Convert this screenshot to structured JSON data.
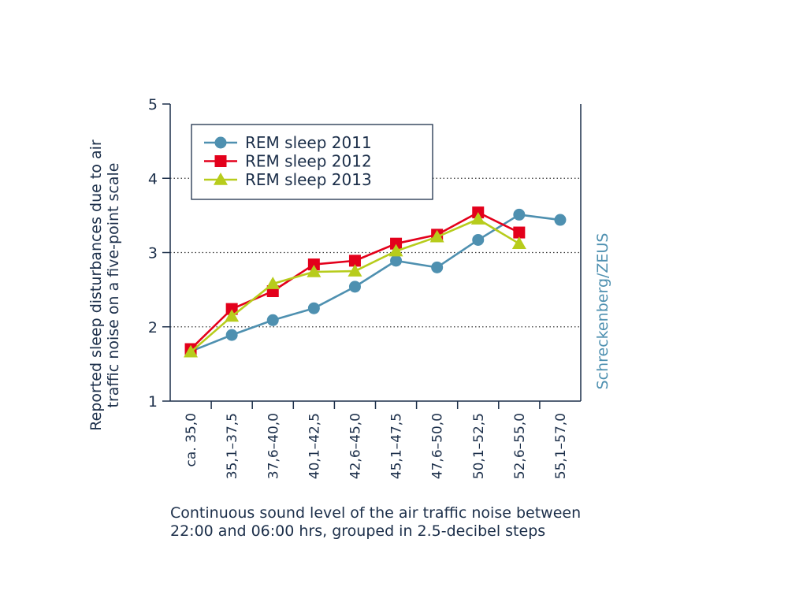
{
  "chart_data": {
    "type": "line",
    "categories": [
      "ca. 35,0",
      "35,1–37,5",
      "37,6–40,0",
      "40,1–42,5",
      "42,6–45,0",
      "45,1–47,5",
      "47,6–50,0",
      "50,1–52,5",
      "52,6–55,0",
      "55,1–57,0"
    ],
    "series": [
      {
        "name": "REM sleep 2011",
        "color": "#4e90b0",
        "marker": "circle",
        "values": [
          1.67,
          1.89,
          2.09,
          2.25,
          2.54,
          2.89,
          2.8,
          3.17,
          3.51,
          3.44
        ]
      },
      {
        "name": "REM sleep 2012",
        "color": "#e3001b",
        "marker": "square",
        "values": [
          1.7,
          2.24,
          2.48,
          2.84,
          2.89,
          3.12,
          3.24,
          3.54,
          3.27,
          null
        ]
      },
      {
        "name": "REM sleep 2013",
        "color": "#b7cc1c",
        "marker": "triangle",
        "values": [
          1.66,
          2.14,
          2.58,
          2.74,
          2.75,
          3.02,
          3.21,
          3.45,
          3.12,
          null
        ]
      }
    ],
    "ylim": [
      1,
      5
    ],
    "yticks": [
      "1",
      "2",
      "3",
      "4",
      "5"
    ],
    "dotted_gridlines_at": [
      2,
      3,
      4
    ],
    "ylabel_lines": [
      "Reported sleep disturbances due to air",
      "traffic noise on a five-point scale"
    ],
    "xlabel_lines": [
      "Continuous sound level of the air traffic noise between",
      "22:00 and 06:00 hrs, grouped in 2.5-decibel steps"
    ],
    "legend_position": "top-left",
    "source_credit": "Schreckenberg/ZEUS",
    "colors": {
      "axis": "#1c2f4a",
      "text": "#1c2f4a",
      "credit": "#4e90b0",
      "grid": "#333333"
    }
  }
}
